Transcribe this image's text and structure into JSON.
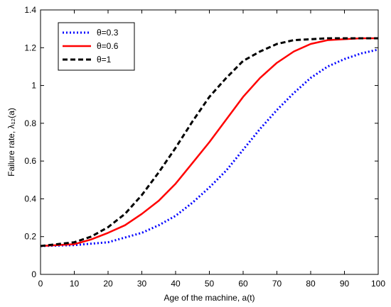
{
  "chart_data": {
    "type": "line",
    "xlabel": "Age of the machine, a(t)",
    "ylabel": "Failure rate, λ₁₂(a)",
    "xlim": [
      0,
      100
    ],
    "ylim": [
      0,
      1.4
    ],
    "xticks": [
      0,
      10,
      20,
      30,
      40,
      50,
      60,
      70,
      80,
      90,
      100
    ],
    "yticks": [
      0,
      0.2,
      0.4,
      0.6,
      0.8,
      1,
      1.2,
      1.4
    ],
    "xtick_labels": [
      "0",
      "10",
      "20",
      "30",
      "40",
      "50",
      "60",
      "70",
      "80",
      "90",
      "100"
    ],
    "ytick_labels": [
      "0",
      "0.2",
      "0.4",
      "0.6",
      "0.8",
      "1",
      "1.2",
      "1.4"
    ],
    "grid": false,
    "legend_position": "top-left",
    "series": [
      {
        "name": "θ=0.3",
        "color": "#0000ff",
        "style": "dotted",
        "x": [
          0,
          10,
          20,
          30,
          35,
          40,
          45,
          50,
          55,
          60,
          65,
          70,
          75,
          80,
          85,
          90,
          95,
          100
        ],
        "y": [
          0.15,
          0.155,
          0.17,
          0.22,
          0.26,
          0.31,
          0.38,
          0.46,
          0.55,
          0.66,
          0.77,
          0.87,
          0.96,
          1.04,
          1.1,
          1.14,
          1.17,
          1.19
        ]
      },
      {
        "name": "θ=0.6",
        "color": "#ff0000",
        "style": "solid",
        "x": [
          0,
          10,
          15,
          20,
          25,
          30,
          35,
          40,
          45,
          50,
          55,
          60,
          65,
          70,
          75,
          80,
          85,
          90,
          95,
          100
        ],
        "y": [
          0.15,
          0.16,
          0.185,
          0.22,
          0.26,
          0.32,
          0.39,
          0.48,
          0.59,
          0.7,
          0.82,
          0.94,
          1.04,
          1.12,
          1.18,
          1.22,
          1.24,
          1.245,
          1.25,
          1.25
        ]
      },
      {
        "name": "θ=1",
        "color": "#000000",
        "style": "dashed",
        "x": [
          0,
          10,
          15,
          20,
          25,
          30,
          35,
          40,
          45,
          50,
          55,
          60,
          65,
          70,
          75,
          80,
          85,
          90,
          95,
          100
        ],
        "y": [
          0.15,
          0.17,
          0.2,
          0.25,
          0.32,
          0.42,
          0.54,
          0.67,
          0.81,
          0.94,
          1.04,
          1.13,
          1.18,
          1.22,
          1.24,
          1.245,
          1.25,
          1.25,
          1.25,
          1.25
        ]
      }
    ]
  }
}
